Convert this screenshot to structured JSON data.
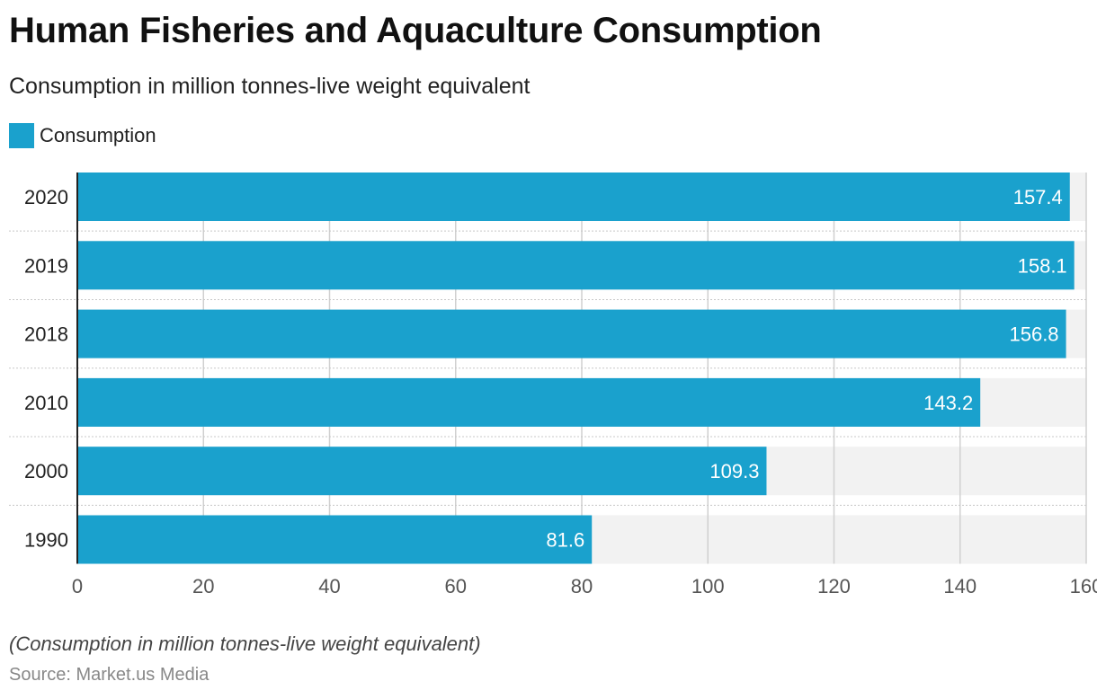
{
  "header": {
    "title": "Human Fisheries and Aquaculture Consumption",
    "subtitle": "Consumption in million tonnes-live weight equivalent"
  },
  "footer": {
    "note": "(Consumption in million tonnes-live weight equivalent)",
    "source": "Source: Market.us Media"
  },
  "chart_data": {
    "type": "bar",
    "orientation": "horizontal",
    "title": "Human Fisheries and Aquaculture Consumption",
    "subtitle": "Consumption in million tonnes-live weight equivalent",
    "categories": [
      "2020",
      "2019",
      "2018",
      "2010",
      "2000",
      "1990"
    ],
    "series": [
      {
        "name": "Consumption",
        "color": "#1aa1cd",
        "values": [
          157.4,
          158.1,
          156.8,
          143.2,
          109.3,
          81.6
        ]
      }
    ],
    "xlabel": "",
    "ylabel": "",
    "xlim": [
      0,
      160
    ],
    "xticks": [
      0,
      20,
      40,
      60,
      80,
      100,
      120,
      140,
      160
    ],
    "grid": true,
    "legend": "top-left",
    "data_labels": true,
    "track_color": "#f2f2f2"
  }
}
